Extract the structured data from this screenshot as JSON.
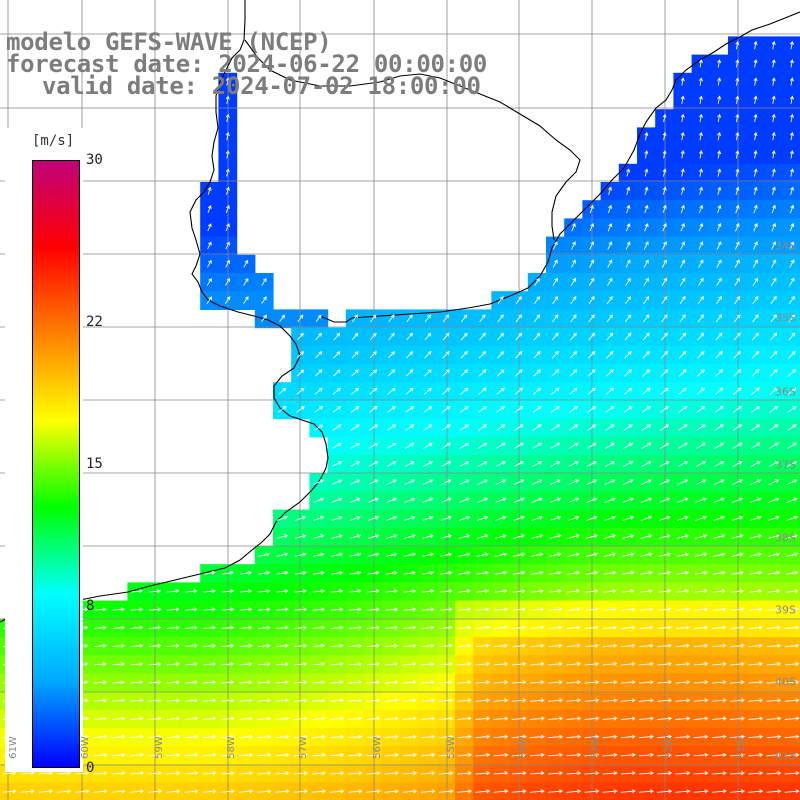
{
  "header": {
    "line1": "modelo GEFS-WAVE (NCEP)",
    "line2": "forecast date: 2024-06-22 00:00:00",
    "line3": "valid date: 2024-07-02 18:00:00"
  },
  "colorbar": {
    "unit": "[m/s]",
    "min": 0,
    "max": 30,
    "ticks": [
      "30",
      "22",
      "15",
      "8",
      "0"
    ],
    "tick_values": [
      30,
      22,
      15,
      8,
      0
    ],
    "colors": [
      "#0000ff",
      "#00aaff",
      "#00ffff",
      "#00ff00",
      "#ffff00",
      "#ff8000",
      "#ff0000",
      "#c0007a"
    ]
  },
  "map": {
    "field": "wind speed and direction",
    "background_color": "#ffffff",
    "grid_color": "#888888",
    "coastline_color": "#000000",
    "arrow_color": "#ffffff",
    "lat_labels": [
      "34S",
      "35S",
      "36S",
      "37S",
      "38S",
      "39S",
      "40S",
      "41S"
    ],
    "lon_labels": [
      "61W",
      "60W",
      "59W",
      "58W",
      "57W",
      "56W",
      "55W",
      "54W",
      "53W",
      "52W",
      "51W"
    ]
  }
}
